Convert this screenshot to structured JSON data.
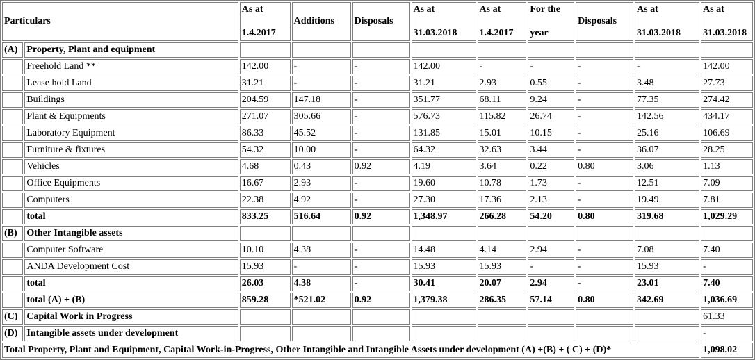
{
  "header": {
    "particulars": "Particulars",
    "c1": [
      "As at",
      "1.4.2017"
    ],
    "c2": "Additions",
    "c3": "Disposals",
    "c4": [
      "As at",
      "31.03.2018"
    ],
    "c5": [
      "As at",
      "1.4.2017"
    ],
    "c6": [
      "For the",
      "year"
    ],
    "c7": "Disposals",
    "c8": [
      "As at",
      "31.03.2018"
    ],
    "c9": [
      "As at",
      "31.03.2018"
    ]
  },
  "sectionA": {
    "code": "(A)",
    "title": "Property, Plant and equipment"
  },
  "rowsA": [
    {
      "label": "Freehold Land **",
      "v": [
        "142.00",
        "-",
        "-",
        "142.00",
        "-",
        "-",
        "-",
        "-",
        "142.00"
      ]
    },
    {
      "label": "Lease hold Land",
      "v": [
        "31.21",
        "-",
        "-",
        "31.21",
        "2.93",
        "0.55",
        "-",
        "3.48",
        "27.73"
      ]
    },
    {
      "label": "Buildings",
      "v": [
        "204.59",
        "147.18",
        "-",
        "351.77",
        "68.11",
        "9.24",
        "-",
        "77.35",
        "274.42"
      ]
    },
    {
      "label": "Plant & Equipments",
      "v": [
        "271.07",
        "305.66",
        "-",
        "576.73",
        "115.82",
        "26.74",
        "-",
        "142.56",
        "434.17"
      ]
    },
    {
      "label": "Laboratory Equipment",
      "v": [
        "86.33",
        "45.52",
        "-",
        "131.85",
        "15.01",
        "10.15",
        "-",
        "25.16",
        "106.69"
      ]
    },
    {
      "label": "Furniture & fixtures",
      "v": [
        "54.32",
        "10.00",
        "-",
        "64.32",
        "32.63",
        "3.44",
        "-",
        "36.07",
        "28.25"
      ]
    },
    {
      "label": "Vehicles",
      "v": [
        "4.68",
        "0.43",
        "0.92",
        "4.19",
        "3.64",
        "0.22",
        "0.80",
        "3.06",
        "1.13"
      ]
    },
    {
      "label": "Office Equipments",
      "v": [
        "16.67",
        "2.93",
        "-",
        "19.60",
        "10.78",
        "1.73",
        "-",
        "12.51",
        "7.09"
      ]
    },
    {
      "label": "Computers",
      "v": [
        "22.38",
        "4.92",
        "-",
        "27.30",
        "17.36",
        "2.13",
        "-",
        "19.49",
        "7.81"
      ]
    }
  ],
  "totalA": {
    "label": "total",
    "v": [
      "833.25",
      "516.64",
      "0.92",
      "1,348.97",
      "266.28",
      "54.20",
      "0.80",
      "319.68",
      "1,029.29"
    ]
  },
  "sectionB": {
    "code": "(B)",
    "title": "Other Intangible assets"
  },
  "rowsB": [
    {
      "label": "Computer Software",
      "v": [
        "10.10",
        "4.38",
        "-",
        "14.48",
        "4.14",
        "2.94",
        "-",
        "7.08",
        "7.40"
      ]
    },
    {
      "label": "ANDA Development Cost",
      "v": [
        "15.93",
        "-",
        "-",
        "15.93",
        "15.93",
        "-",
        "-",
        "15.93",
        "-"
      ]
    }
  ],
  "totalB": {
    "label": "total",
    "v": [
      "26.03",
      "4.38",
      "-",
      "30.41",
      "20.07",
      "2.94",
      "-",
      "23.01",
      "7.40"
    ]
  },
  "totalAB": {
    "label": "total (A) + (B)",
    "v": [
      "859.28",
      "*521.02",
      "0.92",
      "1,379.38",
      "286.35",
      "57.14",
      "0.80",
      "342.69",
      "1,036.69"
    ]
  },
  "sectionC": {
    "code": "(C)",
    "title": "Capital Work in Progress",
    "value": "61.33"
  },
  "sectionD": {
    "code": "(D)",
    "title": "Intangible assets under development",
    "value": "-"
  },
  "grand": {
    "label": "Total Property, Plant and Equipment, Capital Work-in-Progress, Other Intangible and Intangible Assets under development (A) +(B) + ( C) + (D)*",
    "value": "1,098.02"
  }
}
